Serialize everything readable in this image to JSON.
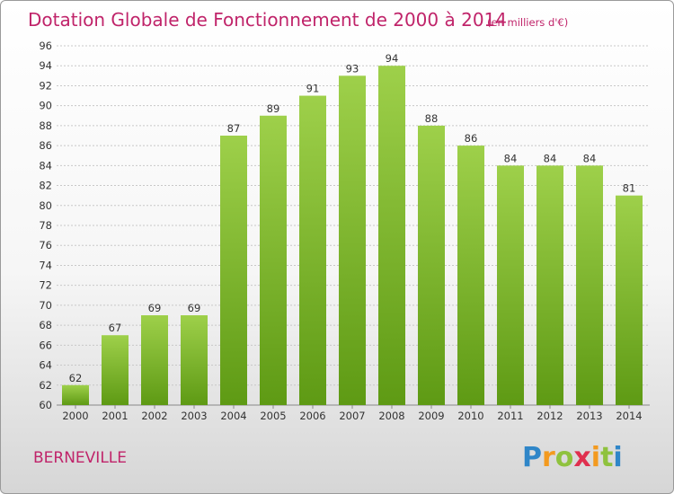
{
  "chart_data": {
    "type": "bar",
    "title": "Dotation Globale de Fonctionnement de 2000 à 2014",
    "subtitle": "(en milliers d'€)",
    "categories": [
      "2000",
      "2001",
      "2002",
      "2003",
      "2004",
      "2005",
      "2006",
      "2007",
      "2008",
      "2009",
      "2010",
      "2011",
      "2012",
      "2013",
      "2014"
    ],
    "values": [
      62,
      67,
      69,
      69,
      87,
      89,
      91,
      93,
      94,
      88,
      86,
      84,
      84,
      84,
      81
    ],
    "ylim": [
      60,
      96
    ],
    "ytick_step": 2,
    "grid": true,
    "legend": "none",
    "bar_color_top": "#9ed04a",
    "bar_color_bottom": "#5e9a14"
  },
  "footer": {
    "commune": "BERNEVILLE",
    "logo_letters": [
      "P",
      "r",
      "o",
      "x",
      "i",
      "t",
      "i"
    ],
    "logo_colors": [
      "#2f86c8",
      "#f39a1f",
      "#8fc23e",
      "#e0304f",
      "#f39a1f",
      "#8fc23e",
      "#2f86c8"
    ]
  }
}
